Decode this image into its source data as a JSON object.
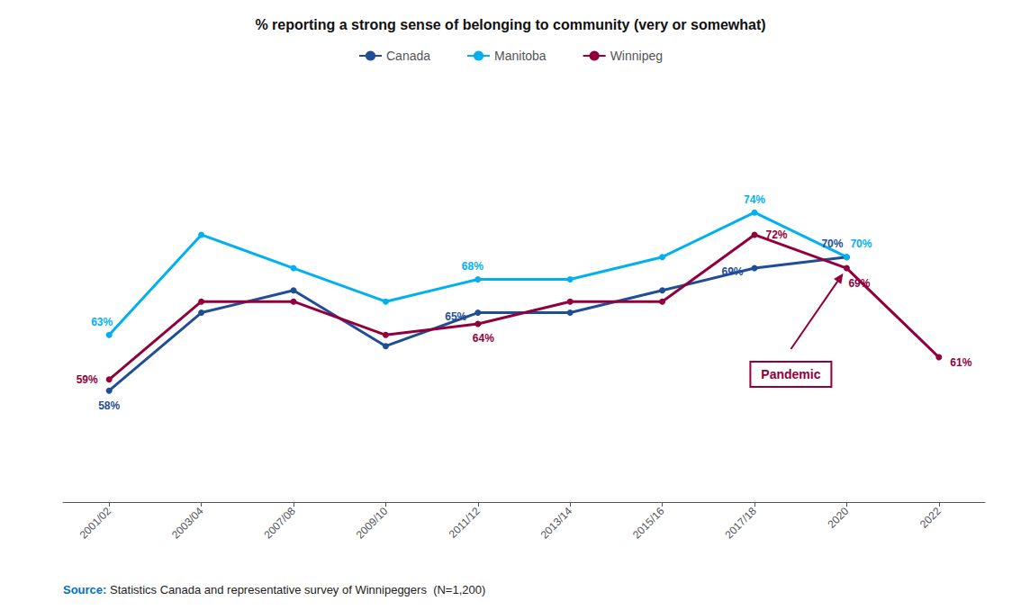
{
  "chart_data": {
    "type": "line",
    "title": "% reporting a strong sense of belonging to community (very or somewhat)",
    "categories": [
      "2001/02",
      "2003/04",
      "2007/08",
      "2009/10",
      "2011/12",
      "2013/14",
      "2015/16",
      "2017/18",
      "2020",
      "2022"
    ],
    "series": [
      {
        "name": "Canada",
        "color": "#1f4e96",
        "values": [
          58,
          65,
          67,
          62,
          65,
          65,
          67,
          69,
          70,
          null
        ],
        "value_labels": [
          "58%",
          null,
          null,
          null,
          "65%",
          null,
          null,
          "69%",
          "70%",
          null
        ]
      },
      {
        "name": "Manitoba",
        "color": "#00b0f0",
        "values": [
          63,
          72,
          69,
          66,
          68,
          68,
          70,
          74,
          70,
          null
        ],
        "value_labels": [
          "63%",
          null,
          null,
          null,
          "68%",
          null,
          null,
          "74%",
          "70%",
          null
        ]
      },
      {
        "name": "Winnipeg",
        "color": "#92003b",
        "values": [
          59,
          66,
          66,
          63,
          64,
          66,
          66,
          72,
          69,
          61
        ],
        "value_labels": [
          "59%",
          null,
          null,
          null,
          "64%",
          null,
          null,
          "72%",
          "69%",
          "61%"
        ]
      }
    ],
    "ylim": [
      48,
      85
    ],
    "tick_labels": "x",
    "grid": false,
    "legend": "top",
    "marker": "circle",
    "data_labels": true,
    "annotations": [
      {
        "text": "Pandemic",
        "x": "2020",
        "y": 69,
        "color": "#92003b"
      }
    ],
    "source": {
      "text": "Source: Statistics Canada and representative survey of Winnipeggers  (N=1,200)",
      "color": "#0070c0"
    }
  }
}
